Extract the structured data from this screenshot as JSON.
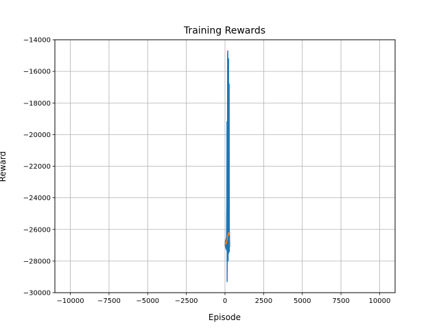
{
  "chart_data": {
    "type": "line",
    "title": "Training Rewards",
    "xlabel": "Episode",
    "ylabel": "Reward",
    "xlim": [
      -11000,
      11000
    ],
    "ylim": [
      -30000,
      -14000
    ],
    "xticks": [
      -10000,
      -7500,
      -5000,
      -2500,
      0,
      2500,
      5000,
      7500,
      10000
    ],
    "xtick_labels": [
      "−10000",
      "−7500",
      "−5000",
      "−2500",
      "0",
      "2500",
      "5000",
      "7500",
      "10000"
    ],
    "yticks": [
      -30000,
      -28000,
      -26000,
      -24000,
      -22000,
      -20000,
      -18000,
      -16000,
      -14000
    ],
    "ytick_labels": [
      "−30000",
      "−28000",
      "−26000",
      "−24000",
      "−22000",
      "−20000",
      "−18000",
      "−16000",
      "−14000"
    ],
    "grid": true,
    "series": [
      {
        "color": "#1f77b4",
        "x": [
          0,
          10,
          20,
          30,
          40,
          50,
          60,
          70,
          80,
          90,
          100,
          110,
          120,
          130,
          140,
          150,
          160,
          170,
          180,
          190,
          200,
          210,
          220,
          230,
          240,
          250,
          260,
          270,
          280,
          290,
          300
        ],
        "y": [
          -26900,
          -27000,
          -26800,
          -27100,
          -26700,
          -26900,
          -27200,
          -26600,
          -27000,
          -26500,
          -27300,
          -25500,
          -24000,
          -19200,
          -29300,
          -26000,
          -22000,
          -15000,
          -14700,
          -20000,
          -28000,
          -17000,
          -25000,
          -15200,
          -27500,
          -21500,
          -27000,
          -16800,
          -27400,
          -26200,
          -27100
        ]
      },
      {
        "color": "#ff7f0e",
        "x": [
          0,
          20,
          40,
          60,
          80,
          100,
          120,
          140,
          160,
          180,
          200,
          220,
          240,
          260,
          280,
          300
        ],
        "y": [
          -26900,
          -26950,
          -26850,
          -26900,
          -26800,
          -26850,
          -26700,
          -26600,
          -26500,
          -26400,
          -26300,
          -26200,
          -26350,
          -26250,
          -26300,
          -26200
        ]
      }
    ]
  }
}
